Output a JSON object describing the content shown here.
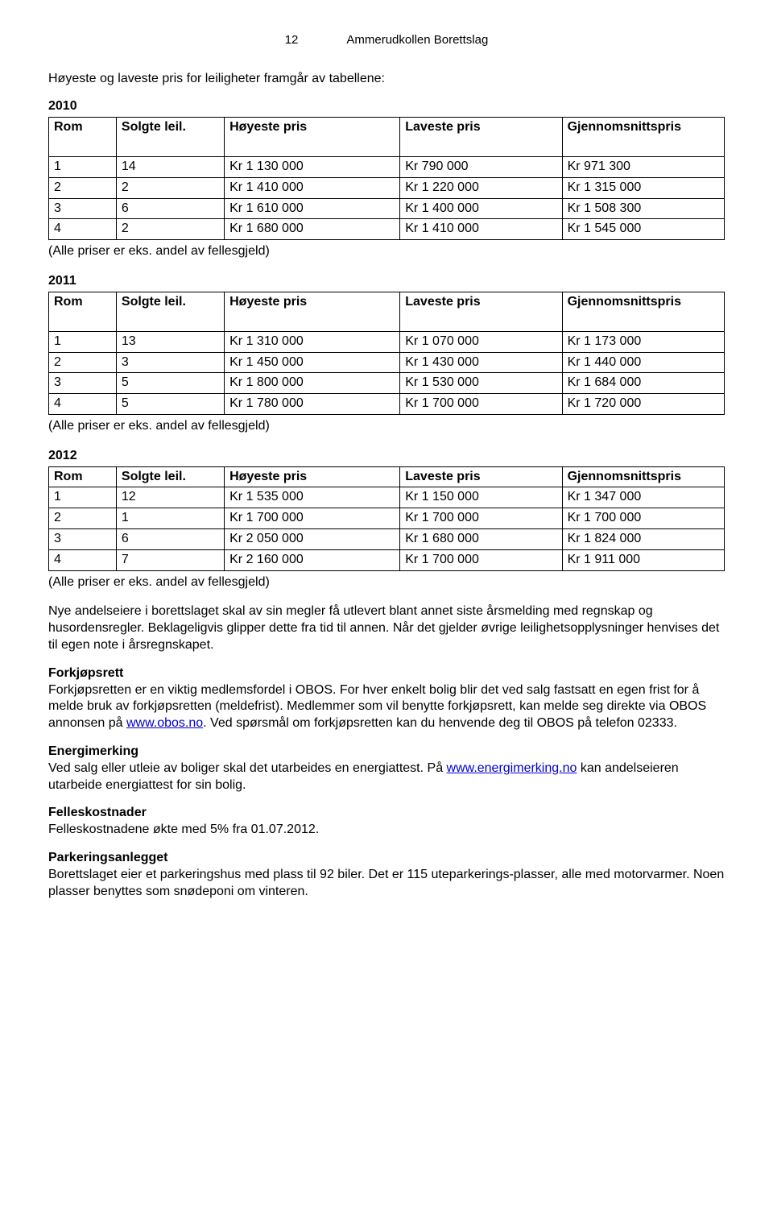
{
  "header": {
    "page_number": "12",
    "org": "Ammerudkollen Borettslag"
  },
  "intro": "Høyeste og laveste pris for leiligheter framgår av tabellene:",
  "columns": {
    "rom": "Rom",
    "solgte": "Solgte leil.",
    "hoy": "Høyeste pris",
    "lav": "Laveste pris",
    "gj": "Gjennomsnittspris"
  },
  "note_text": "(Alle priser er eks. andel av fellesgjeld)",
  "tables": {
    "y2010": {
      "year": "2010",
      "rows": [
        {
          "rom": "1",
          "solgte": "14",
          "hoy": "Kr  1 130 000",
          "lav": "Kr    790 000",
          "gj": "Kr    971 300"
        },
        {
          "rom": "2",
          "solgte": "2",
          "hoy": "Kr  1 410 000",
          "lav": "Kr  1 220 000",
          "gj": "Kr  1 315 000"
        },
        {
          "rom": "3",
          "solgte": "6",
          "hoy": "Kr  1 610 000",
          "lav": "Kr  1 400 000",
          "gj": "Kr  1 508 300"
        },
        {
          "rom": "4",
          "solgte": "2",
          "hoy": "Kr  1 680 000",
          "lav": "Kr  1 410 000",
          "gj": "Kr  1 545 000"
        }
      ]
    },
    "y2011": {
      "year": "2011",
      "rows": [
        {
          "rom": "1",
          "solgte": "13",
          "hoy": "Kr  1 310 000",
          "lav": "Kr  1 070 000",
          "gj": "Kr  1 173 000"
        },
        {
          "rom": "2",
          "solgte": "3",
          "hoy": "Kr  1 450 000",
          "lav": "Kr  1 430 000",
          "gj": "Kr  1 440 000"
        },
        {
          "rom": "3",
          "solgte": "5",
          "hoy": "Kr  1 800 000",
          "lav": "Kr  1 530 000",
          "gj": "Kr  1 684 000"
        },
        {
          "rom": "4",
          "solgte": "5",
          "hoy": "Kr  1 780 000",
          "lav": "Kr  1 700 000",
          "gj": "Kr  1 720 000"
        }
      ]
    },
    "y2012": {
      "year": "2012",
      "rows": [
        {
          "rom": "1",
          "solgte": "12",
          "hoy": "Kr  1 535 000",
          "lav": "Kr  1 150 000",
          "gj": "Kr  1 347 000"
        },
        {
          "rom": "2",
          "solgte": "1",
          "hoy": "Kr  1 700 000",
          "lav": "Kr  1 700 000",
          "gj": "Kr  1 700 000"
        },
        {
          "rom": "3",
          "solgte": "6",
          "hoy": "Kr  2 050 000",
          "lav": "Kr  1 680 000",
          "gj": "Kr  1 824 000"
        },
        {
          "rom": "4",
          "solgte": "7",
          "hoy": "Kr  2 160 000",
          "lav": "Kr  1 700 000",
          "gj": "Kr  1 911 000"
        }
      ]
    }
  },
  "paragraphs": {
    "nye": "Nye andelseiere i borettslaget skal av sin megler få utlevert blant annet siste årsmelding med regnskap og husordensregler. Beklageligvis glipper dette fra tid til annen. Når det gjelder øvrige leilighetsopplysninger henvises det til egen note i årsregnskapet.",
    "forkjop_title": "Forkjøpsrett",
    "forkjop_text_1": "Forkjøpsretten er en viktig medlemsfordel i OBOS. For hver enkelt bolig blir det ved salg fastsatt en egen frist for å melde bruk av forkjøpsretten (meldefrist). Medlemmer som vil benytte forkjøpsrett, kan melde seg direkte via OBOS annonsen på ",
    "forkjop_link": "www.obos.no",
    "forkjop_text_2": ". Ved spørsmål om forkjøpsretten kan du henvende deg til OBOS på telefon 02333.",
    "energi_title": "Energimerking",
    "energi_text_1": "Ved salg eller utleie av boliger skal det utarbeides en energiattest. På ",
    "energi_link": "www.energimerking.no",
    "energi_text_2": " kan andelseieren utarbeide energiattest for sin bolig.",
    "felles_title": "Felleskostnader",
    "felles_text": "Felleskostnadene økte med 5% fra 01.07.2012.",
    "park_title": "Parkeringsanlegget",
    "park_text": "Borettslaget eier et parkeringshus med plass til 92 biler. Det er 115 uteparkerings-plasser, alle med motorvarmer. Noen plasser benyttes som snødeponi om vinteren."
  }
}
